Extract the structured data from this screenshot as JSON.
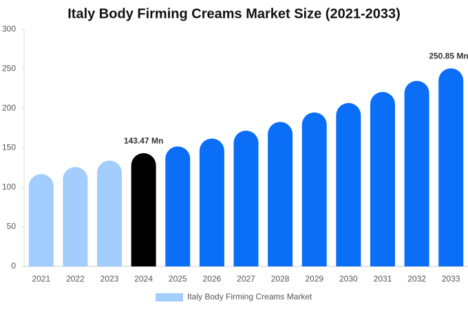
{
  "chart_data": {
    "type": "bar",
    "title": "Italy Body Firming Creams Market Size (2021-2033)",
    "categories": [
      "2021",
      "2022",
      "2023",
      "2024",
      "2025",
      "2026",
      "2027",
      "2028",
      "2029",
      "2030",
      "2031",
      "2032",
      "2033"
    ],
    "series": [
      {
        "name": "Italy Body Firming Creams Market",
        "color": "#a3cdfc",
        "values": [
          117,
          126,
          134,
          143.47,
          152,
          162,
          172,
          183,
          195,
          207,
          221,
          235,
          250.85
        ],
        "value_labels": [
          null,
          null,
          null,
          "143.47 Mn",
          null,
          null,
          null,
          null,
          null,
          null,
          null,
          null,
          "250.85 Mn"
        ],
        "colors": [
          "#a3cdfc",
          "#a3cdfc",
          "#a3cdfc",
          "#000000",
          "#0a6ef7",
          "#0a6ef7",
          "#0a6ef7",
          "#0a6ef7",
          "#0a6ef7",
          "#0a6ef7",
          "#0a6ef7",
          "#0a6ef7",
          "#0a6ef7"
        ]
      }
    ],
    "ylim": [
      0,
      300
    ],
    "yticks": [
      0,
      50,
      100,
      150,
      200,
      250,
      300
    ],
    "grid": false
  }
}
